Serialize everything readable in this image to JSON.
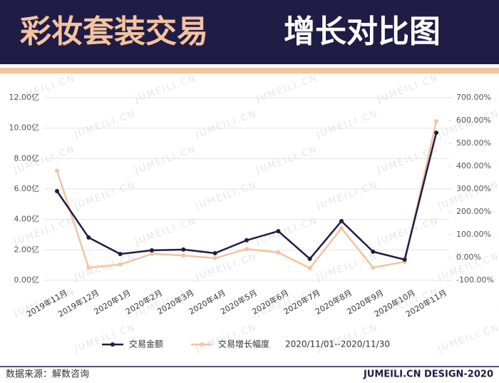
{
  "chart_data": {
    "type": "line",
    "title": [
      "彩妆套装交易",
      "增长对比图"
    ],
    "categories": [
      "2019年11月",
      "2019年12月",
      "2020年1月",
      "2020年2月",
      "2020年3月",
      "2020年4月",
      "2020年5月",
      "2020年6月",
      "2020年7月",
      "2020年8月",
      "2020年9月",
      "2020年10月",
      "2020年11月"
    ],
    "series": [
      {
        "name": "交易金额",
        "color": "#1f1d45",
        "values": [
          5.86,
          2.81,
          1.73,
          1.97,
          2.02,
          1.78,
          2.63,
          3.23,
          1.41,
          3.89,
          1.88,
          1.36,
          9.7
        ]
      },
      {
        "name": "交易增长幅度",
        "color": "#f5c3a0",
        "axis": "y2",
        "values": [
          380,
          -44,
          -31,
          16,
          9,
          -3,
          37,
          22,
          -47,
          128,
          -44,
          -19,
          597
        ]
      }
    ],
    "ylim": [
      0,
      12
    ],
    "yticks": [
      {
        "value": 0,
        "label": "0.00亿"
      },
      {
        "value": 2,
        "label": "2.00亿"
      },
      {
        "value": 4,
        "label": "4.00亿"
      },
      {
        "value": 6,
        "label": "6.00亿"
      },
      {
        "value": 8,
        "label": "8.00亿"
      },
      {
        "value": 10,
        "label": "10.00亿"
      },
      {
        "value": 12,
        "label": "12.00亿"
      }
    ],
    "y2lim": [
      -100,
      700
    ],
    "y2ticks": [
      {
        "value": -100,
        "label": "-100.00%"
      },
      {
        "value": 0,
        "label": "0.00%"
      },
      {
        "value": 100,
        "label": "100.00%"
      },
      {
        "value": 200,
        "label": "200.00%"
      },
      {
        "value": 300,
        "label": "300.00%"
      },
      {
        "value": 400,
        "label": "400.00%"
      },
      {
        "value": 500,
        "label": "500.00%"
      },
      {
        "value": 600,
        "label": "600.00%"
      },
      {
        "value": 700,
        "label": "700.00%"
      }
    ],
    "grid": true,
    "legend": "bottom",
    "annotation": "2020/11/01--2020/11/30",
    "watermark": "JUMEILI.CN",
    "source": "数据来源：解数咨询",
    "credit": "JUMEILI.CN DESIGN-2020"
  }
}
